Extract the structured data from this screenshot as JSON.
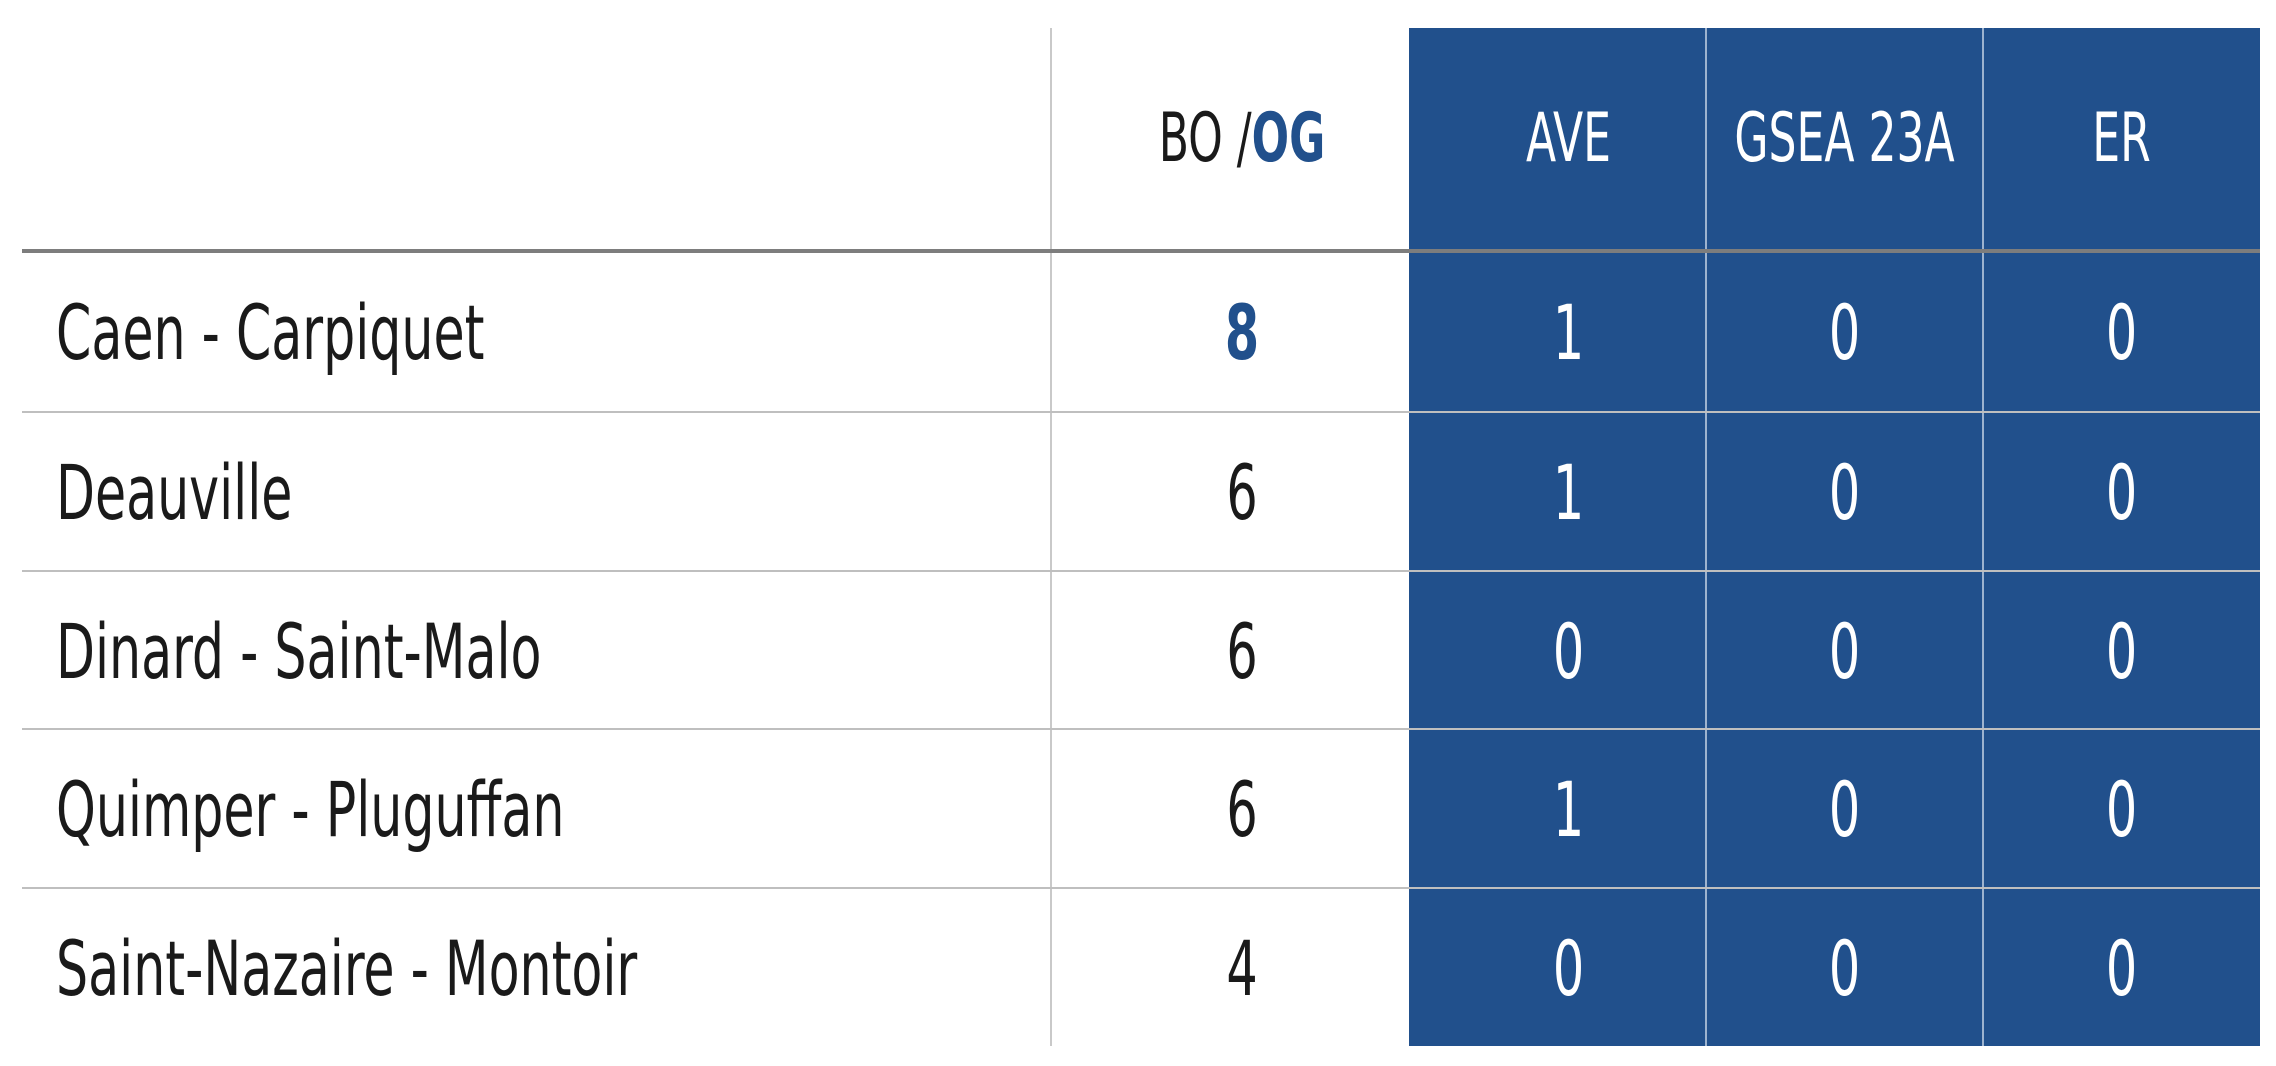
{
  "header": {
    "bo_prefix": "BO / ",
    "bo_suffix": "OG",
    "ave": "AVE",
    "gsea": "GSEA 23A",
    "er": "ER"
  },
  "rows": [
    {
      "name": "Caen - Carpiquet",
      "bo": "8",
      "ave": "1",
      "gsea": "0",
      "er": "0",
      "bo_highlight": true
    },
    {
      "name": "Deauville",
      "bo": "6",
      "ave": "1",
      "gsea": "0",
      "er": "0",
      "bo_highlight": false
    },
    {
      "name": "Dinard - Saint-Malo",
      "bo": "6",
      "ave": "0",
      "gsea": "0",
      "er": "0",
      "bo_highlight": false
    },
    {
      "name": "Quimper - Pluguffan",
      "bo": "6",
      "ave": "1",
      "gsea": "0",
      "er": "0",
      "bo_highlight": false
    },
    {
      "name": "Saint-Nazaire - Montoir",
      "bo": "4",
      "ave": "0",
      "gsea": "0",
      "er": "0",
      "bo_highlight": false
    }
  ],
  "colors": {
    "accent_blue": "#21508c",
    "text_dark": "#1a1a1a",
    "grid_light": "#bfbfbf",
    "header_rule": "#7d7d7d"
  }
}
